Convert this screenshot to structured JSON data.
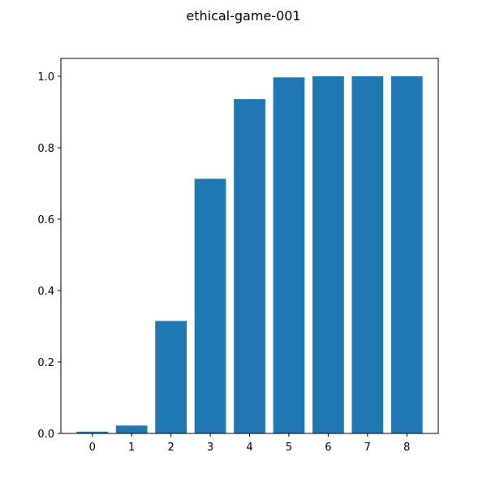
{
  "chart_data": {
    "type": "bar",
    "title": "ethical-game-001",
    "xlabel": "",
    "ylabel": "",
    "categories": [
      "0",
      "1",
      "2",
      "3",
      "4",
      "5",
      "6",
      "7",
      "8"
    ],
    "values": [
      0.005,
      0.022,
      0.315,
      0.713,
      0.936,
      0.997,
      1.0,
      1.0,
      1.0
    ],
    "ylim": [
      0,
      1.05
    ],
    "yticks": [
      "0.0",
      "0.2",
      "0.4",
      "0.6",
      "0.8",
      "1.0"
    ],
    "grid": false,
    "legend": "none",
    "bar_color": "#1f77b4"
  }
}
